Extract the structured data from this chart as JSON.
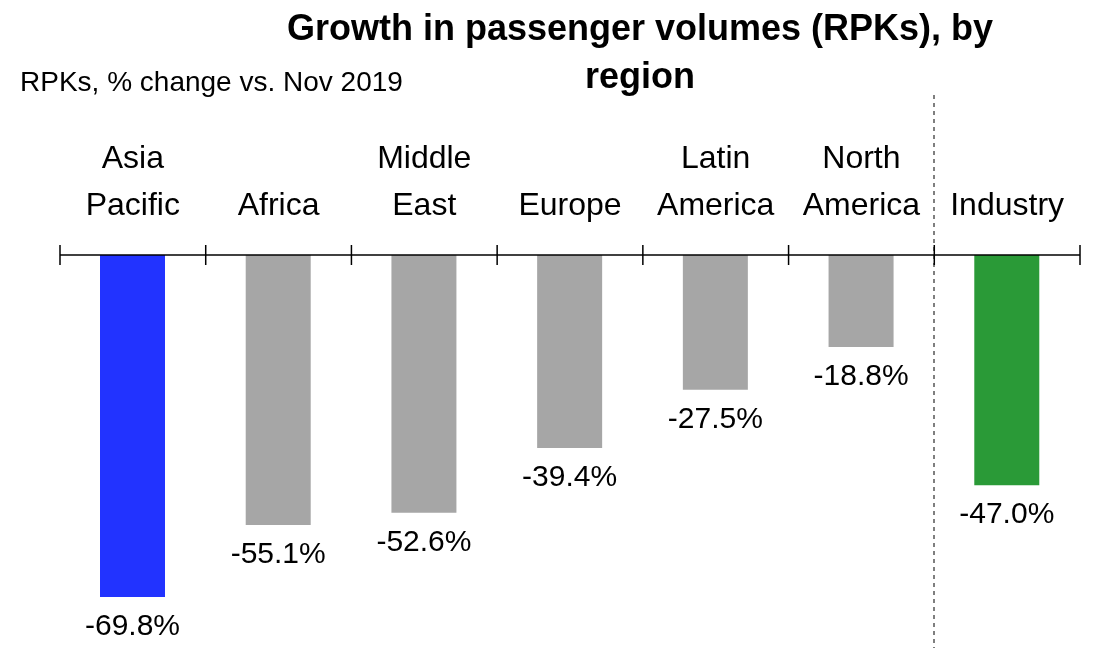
{
  "chart_data": {
    "type": "bar",
    "title": "Growth in passenger volumes (RPKs), by region",
    "subtitle": "RPKs, % change vs. Nov 2019",
    "categories": [
      "Asia Pacific",
      "Africa",
      "Middle East",
      "Europe",
      "Latin America",
      "North America",
      "Industry"
    ],
    "values": [
      -69.8,
      -55.1,
      -52.6,
      -39.4,
      -27.5,
      -18.8,
      -47.0
    ],
    "colors": [
      "#2233ff",
      "#a6a6a6",
      "#a6a6a6",
      "#a6a6a6",
      "#a6a6a6",
      "#a6a6a6",
      "#2a9a37"
    ],
    "value_labels": [
      "-69.8%",
      "-55.1%",
      "-52.6%",
      "-39.4%",
      "-27.5%",
      "-18.8%",
      "-47.0%"
    ],
    "grid": false,
    "legend": false
  }
}
